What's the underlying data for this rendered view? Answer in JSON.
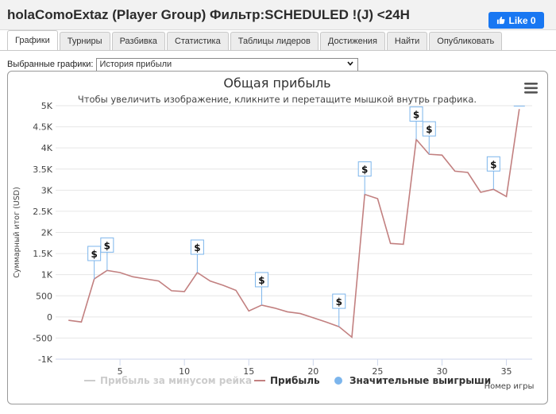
{
  "header": {
    "title": "holaComoExtaz (Player Group) Фильтр:SCHEDULED !(J) <24H",
    "like_label": "Like 0"
  },
  "tabs": [
    {
      "label": "Графики",
      "active": true
    },
    {
      "label": "Турниры",
      "active": false
    },
    {
      "label": "Разбивка",
      "active": false
    },
    {
      "label": "Статистика",
      "active": false
    },
    {
      "label": "Таблицы лидеров",
      "active": false
    },
    {
      "label": "Достижения",
      "active": false
    },
    {
      "label": "Найти",
      "active": false
    },
    {
      "label": "Опубликовать",
      "active": false
    }
  ],
  "selector": {
    "label": "Выбранные графики:",
    "value": "История прибыли"
  },
  "colors": {
    "profit_line": "#c28080",
    "rake_line": "#cccccc",
    "big_win": "#7cb5ec",
    "grid": "#e6e6e6",
    "like_button": "#1877f2"
  },
  "chart_data": {
    "type": "line",
    "title": "Общая прибыль",
    "subtitle": "Чтобы увеличить изображение, кликните и перетащите мышкой внутрь графика.",
    "xlabel": "Номер игры",
    "ylabel": "Суммарный итог (USD)",
    "xlim": [
      0,
      37
    ],
    "ylim": [
      -1000,
      5000
    ],
    "x_ticks": [
      5,
      10,
      15,
      20,
      25,
      30,
      35
    ],
    "y_ticks": [
      -1000,
      -500,
      0,
      500,
      1000,
      1500,
      2000,
      2500,
      3000,
      3500,
      4000,
      4500,
      5000
    ],
    "y_tick_labels": [
      "-1K",
      "-500",
      "0",
      "500",
      "1K",
      "1.5K",
      "2K",
      "2.5K",
      "3K",
      "3.5K",
      "4K",
      "4.5K",
      "5K"
    ],
    "grid": "horizontal",
    "legend_position": "bottom",
    "series": [
      {
        "name": "Прибыль за минусом рейка",
        "visible": false,
        "x": [],
        "values": []
      },
      {
        "name": "Прибыль",
        "visible": true,
        "x": [
          1,
          2,
          3,
          4,
          5,
          6,
          7,
          8,
          9,
          10,
          11,
          12,
          13,
          14,
          15,
          16,
          17,
          18,
          19,
          20,
          21,
          22,
          23,
          24,
          25,
          26,
          27,
          28,
          29,
          30,
          31,
          32,
          33,
          34,
          35,
          36
        ],
        "values": [
          -80,
          -120,
          900,
          1100,
          1050,
          950,
          900,
          850,
          620,
          600,
          1050,
          850,
          750,
          630,
          140,
          280,
          210,
          120,
          80,
          -20,
          -120,
          -230,
          -480,
          2900,
          2800,
          1740,
          1720,
          4200,
          3850,
          3830,
          3450,
          3420,
          2950,
          3020,
          2850,
          4920
        ]
      },
      {
        "name": "Значительные выигрыши",
        "visible": true,
        "marker_label": "$",
        "x": [
          3,
          4,
          11,
          16,
          22,
          24,
          28,
          29,
          34
        ],
        "values": [
          900,
          1100,
          1050,
          280,
          -230,
          2900,
          4200,
          3850,
          3020
        ]
      }
    ]
  }
}
